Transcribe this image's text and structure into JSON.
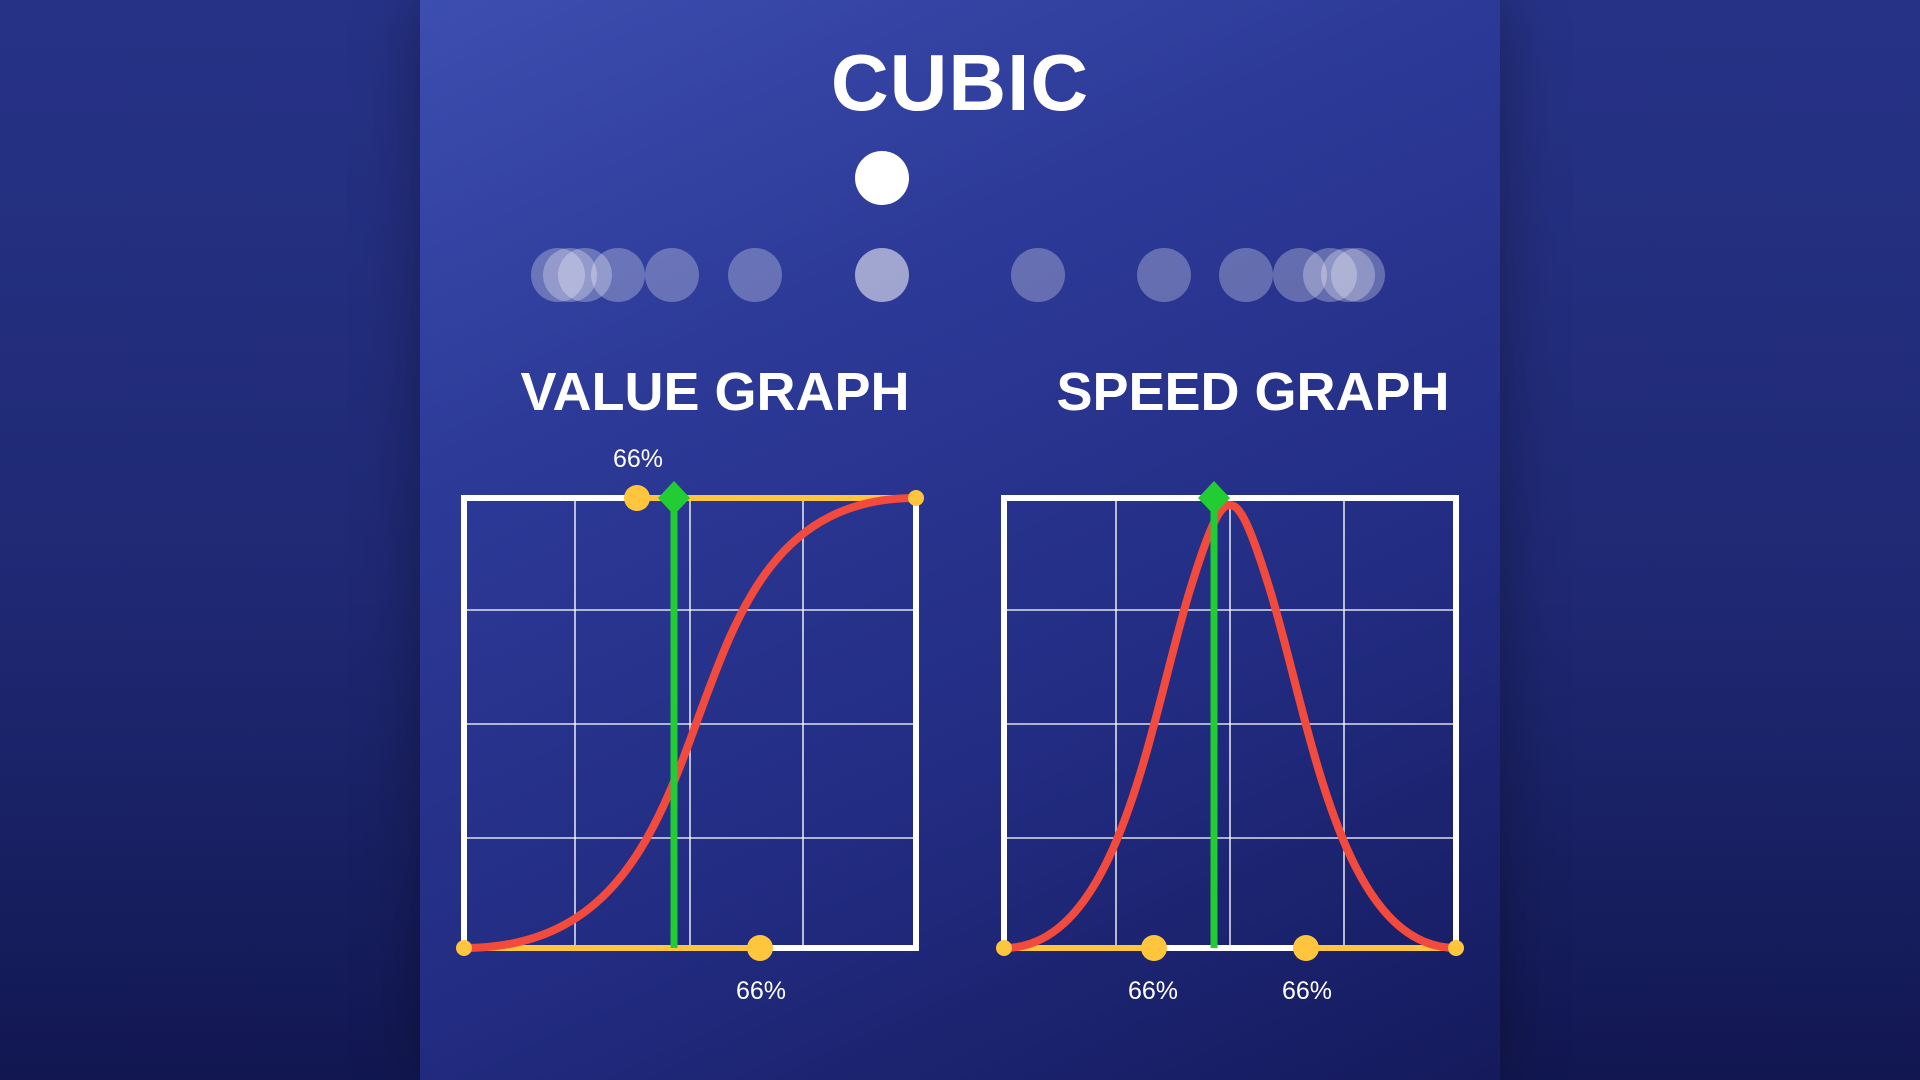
{
  "title": "CUBIC",
  "value_graph": {
    "heading": "VALUE GRAPH",
    "top_handle_label": "66%",
    "bottom_handle_label": "66%"
  },
  "speed_graph": {
    "heading": "SPEED GRAPH",
    "left_handle_label": "66%",
    "right_handle_label": "66%"
  },
  "colors": {
    "curve": "#f24a3c",
    "handle": "#ffc63d",
    "playhead": "#22cc33",
    "grid": "#ffffff"
  }
}
